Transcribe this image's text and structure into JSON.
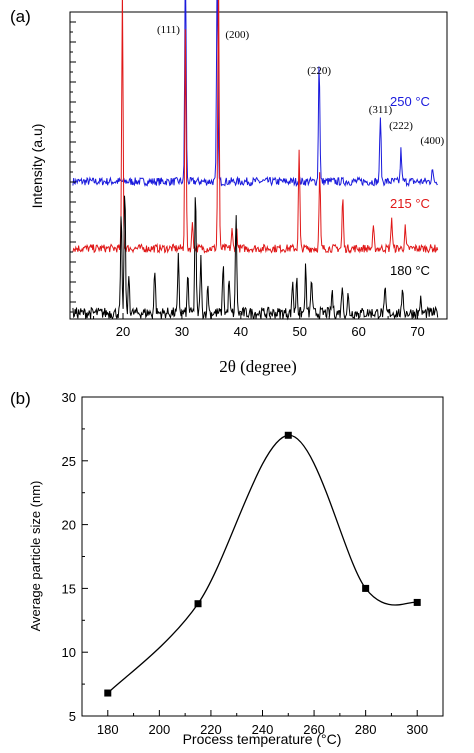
{
  "chart_data": [
    {
      "type": "line",
      "panel_label": "(a)",
      "xlabel": "2θ (degree)",
      "ylabel": "Intensity (a.u)",
      "xlim": [
        11,
        75
      ],
      "x_ticks": [
        20,
        30,
        40,
        50,
        60,
        70
      ],
      "grid": false,
      "series": [
        {
          "name": "250 °C",
          "color": "#1a1adc",
          "baseline": 0.58,
          "noise": 0.018,
          "peaks": [
            {
              "x": 30.6,
              "h": 1.0
            },
            {
              "x": 36.0,
              "h": 0.95
            },
            {
              "x": 53.3,
              "h": 0.55
            },
            {
              "x": 63.7,
              "h": 0.3
            },
            {
              "x": 67.2,
              "h": 0.14
            },
            {
              "x": 72.5,
              "h": 0.06
            }
          ]
        },
        {
          "name": "215 °C",
          "color": "#e01818",
          "baseline": 0.285,
          "noise": 0.018,
          "peaks": [
            {
              "x": 19.9,
              "h": 1.15
            },
            {
              "x": 30.6,
              "h": 0.97
            },
            {
              "x": 31.8,
              "h": 0.12
            },
            {
              "x": 36.2,
              "h": 1.22
            },
            {
              "x": 38.5,
              "h": 0.08
            },
            {
              "x": 39.3,
              "h": 0.09
            },
            {
              "x": 49.9,
              "h": 0.43
            },
            {
              "x": 53.4,
              "h": 0.33
            },
            {
              "x": 57.3,
              "h": 0.23
            },
            {
              "x": 62.5,
              "h": 0.09
            },
            {
              "x": 65.6,
              "h": 0.14
            },
            {
              "x": 67.9,
              "h": 0.09
            }
          ]
        },
        {
          "name": "180 °C",
          "color": "#000000",
          "baseline": 0.0,
          "noise": 0.025,
          "peaks": [
            {
              "x": 19.7,
              "h": 0.43
            },
            {
              "x": 20.3,
              "h": 0.55
            },
            {
              "x": 21.0,
              "h": 0.17
            },
            {
              "x": 25.4,
              "h": 0.2
            },
            {
              "x": 29.4,
              "h": 0.25
            },
            {
              "x": 31.0,
              "h": 0.17
            },
            {
              "x": 32.3,
              "h": 0.55
            },
            {
              "x": 33.2,
              "h": 0.25
            },
            {
              "x": 34.4,
              "h": 0.12
            },
            {
              "x": 37.0,
              "h": 0.22
            },
            {
              "x": 38.0,
              "h": 0.15
            },
            {
              "x": 39.2,
              "h": 0.45
            },
            {
              "x": 48.8,
              "h": 0.15
            },
            {
              "x": 49.5,
              "h": 0.17
            },
            {
              "x": 51.0,
              "h": 0.2
            },
            {
              "x": 52.0,
              "h": 0.16
            },
            {
              "x": 55.5,
              "h": 0.1
            },
            {
              "x": 57.2,
              "h": 0.13
            },
            {
              "x": 58.2,
              "h": 0.08
            },
            {
              "x": 64.5,
              "h": 0.1
            },
            {
              "x": 67.5,
              "h": 0.1
            },
            {
              "x": 70.5,
              "h": 0.06
            }
          ]
        }
      ],
      "annotations": [
        {
          "text": "(111)",
          "x": 30.6
        },
        {
          "text": "(200)",
          "x": 36.0
        },
        {
          "text": "(220)",
          "x": 53.3
        },
        {
          "text": "(311)",
          "x": 63.7
        },
        {
          "text": "(222)",
          "x": 67.2
        },
        {
          "text": "(400)",
          "x": 72.5
        }
      ]
    },
    {
      "type": "line",
      "panel_label": "(b)",
      "xlabel": "Process temperature (°C)",
      "ylabel": "Average particle size (nm)",
      "xlim": [
        170,
        310
      ],
      "ylim": [
        5,
        30
      ],
      "x_ticks": [
        180,
        200,
        220,
        240,
        260,
        280,
        300
      ],
      "y_ticks": [
        5,
        10,
        15,
        20,
        25,
        30
      ],
      "grid": false,
      "x": [
        180,
        215,
        250,
        280,
        300
      ],
      "y": [
        6.8,
        13.8,
        27.0,
        15.0,
        13.9
      ]
    }
  ]
}
